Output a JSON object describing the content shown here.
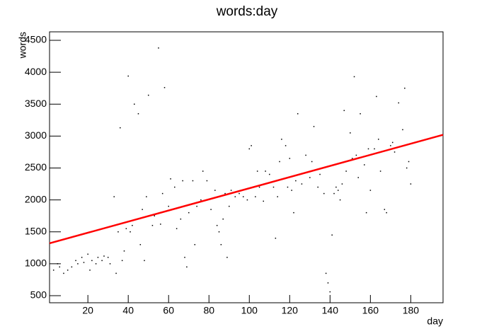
{
  "chart_data": {
    "type": "scatter",
    "title": "words:day",
    "x_label": "day",
    "y_label": "words",
    "xlim": [
      1,
      196
    ],
    "ylim": [
      389,
      4633
    ],
    "xticks": [
      20,
      40,
      60,
      80,
      100,
      120,
      140,
      160,
      180
    ],
    "yticks": [
      500,
      1000,
      1500,
      2000,
      2500,
      3000,
      3500,
      4000,
      4500
    ],
    "points": {
      "color": "#000000",
      "x": [
        3,
        5,
        6,
        8,
        10,
        12,
        14,
        15,
        17,
        18,
        20,
        21,
        22,
        24,
        25,
        27,
        28,
        30,
        31,
        33,
        34,
        35,
        36,
        37,
        38,
        39,
        40,
        41,
        42,
        43,
        45,
        46,
        47,
        48,
        49,
        50,
        52,
        53,
        55,
        56,
        57,
        58,
        60,
        61,
        63,
        64,
        66,
        67,
        68,
        69,
        70,
        72,
        73,
        74,
        76,
        77,
        79,
        81,
        83,
        84,
        85,
        86,
        87,
        88,
        89,
        90,
        91,
        93,
        95,
        97,
        99,
        100,
        101,
        103,
        104,
        105,
        107,
        108,
        110,
        112,
        113,
        114,
        115,
        116,
        118,
        119,
        120,
        121,
        122,
        123,
        124,
        126,
        128,
        130,
        131,
        132,
        134,
        135,
        137,
        138,
        139,
        140,
        141,
        142,
        143,
        144,
        145,
        146,
        147,
        148,
        150,
        151,
        152,
        153,
        154,
        155,
        157,
        158,
        159,
        160,
        162,
        163,
        164,
        165,
        167,
        168,
        170,
        171,
        172,
        174,
        176,
        177,
        178,
        179,
        180
      ],
      "values": [
        900,
        1000,
        950,
        850,
        900,
        950,
        1050,
        1000,
        1100,
        1020,
        1150,
        900,
        1050,
        1000,
        1100,
        1050,
        1120,
        1100,
        1000,
        2050,
        850,
        1500,
        3130,
        1050,
        1200,
        1550,
        3940,
        1500,
        1600,
        3500,
        3350,
        1300,
        1850,
        1050,
        2050,
        3640,
        1600,
        1750,
        4380,
        1620,
        2100,
        3760,
        1900,
        2330,
        2200,
        1550,
        1700,
        2300,
        1100,
        950,
        1800,
        2300,
        1300,
        1900,
        2000,
        2450,
        2300,
        1850,
        2150,
        1600,
        1500,
        1300,
        1700,
        2100,
        1100,
        1900,
        2150,
        2050,
        2100,
        2050,
        2000,
        2800,
        2850,
        2050,
        2450,
        2200,
        1980,
        2450,
        2400,
        2200,
        1400,
        2050,
        2600,
        2950,
        2850,
        2200,
        2650,
        2150,
        1800,
        2300,
        3350,
        2250,
        2700,
        2350,
        2600,
        3150,
        2200,
        2400,
        2100,
        850,
        700,
        560,
        1450,
        2100,
        2200,
        2150,
        2000,
        2250,
        3400,
        2450,
        3050,
        2650,
        3930,
        2700,
        2350,
        3350,
        2550,
        1800,
        2800,
        2150,
        2800,
        3620,
        2950,
        2450,
        1850,
        1800,
        2850,
        2900,
        2750,
        3520,
        3100,
        3750,
        2500,
        2600,
        2250
      ]
    },
    "fit": {
      "color": "#ff0000",
      "x": [
        1,
        196
      ],
      "values": [
        1320,
        3020
      ]
    }
  }
}
